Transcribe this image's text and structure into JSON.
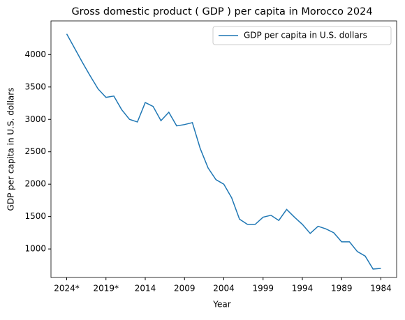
{
  "chart_data": {
    "type": "line",
    "title": "Gross domestic product ( GDP ) per capita in Morocco 2024",
    "xlabel": "Year",
    "ylabel": "GDP per capita in U.S. dollars",
    "categories": [
      "2024*",
      null,
      null,
      null,
      null,
      "2019*",
      null,
      null,
      null,
      null,
      "2014",
      null,
      null,
      null,
      null,
      "2009",
      null,
      null,
      null,
      null,
      "2004",
      null,
      null,
      null,
      null,
      "1999",
      null,
      null,
      null,
      null,
      "1994",
      null,
      null,
      null,
      null,
      "1989",
      null,
      null,
      null,
      null,
      "1984"
    ],
    "series": [
      {
        "name": "GDP per capita in U.S. dollars",
        "color": "#1f77b4",
        "values": [
          4320,
          4100,
          3880,
          3670,
          3470,
          3340,
          3360,
          3150,
          3000,
          2960,
          3260,
          3200,
          2980,
          3110,
          2900,
          2920,
          2950,
          2550,
          2250,
          2070,
          2000,
          1790,
          1460,
          1380,
          1380,
          1490,
          1520,
          1440,
          1610,
          1490,
          1380,
          1240,
          1350,
          1310,
          1250,
          1110,
          1110,
          960,
          890,
          690,
          700
        ]
      }
    ],
    "ylim": [
      560,
      4520
    ],
    "yticks": [
      1000,
      1500,
      2000,
      2500,
      3000,
      3500,
      4000
    ],
    "grid": false,
    "legend": "upper right"
  }
}
